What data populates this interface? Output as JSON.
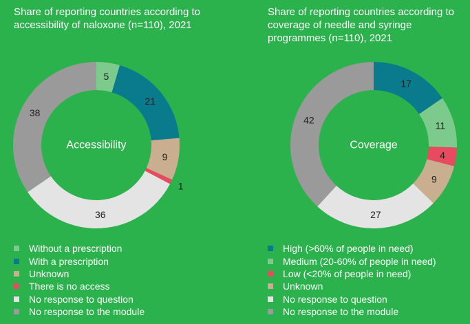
{
  "chart_data": [
    {
      "type": "pie",
      "title": "Share of reporting countries according to accessibility of naloxone  (n=110), 2021",
      "center_label": "Accessibility",
      "categories": [
        "Without a prescription",
        "With a prescription",
        "Unknown",
        "There is no access",
        "No response to question",
        "No response to the module"
      ],
      "values": [
        5,
        21,
        9,
        1,
        36,
        38
      ],
      "colors": [
        "#7ccb8c",
        "#0a7b8c",
        "#c9ae8f",
        "#e84a5f",
        "#e4e4e4",
        "#9a9a9a"
      ],
      "legend_position": "bottom"
    },
    {
      "type": "pie",
      "title": "Share of reporting countries according to coverage of needle and syringe programmes (n=110), 2021",
      "center_label": "Coverage",
      "categories": [
        "High (>60% of people in need)",
        "Medium (20-60% of people in need)",
        "Low (<20% of people in need)",
        "Unknown",
        "No response to question",
        "No response to the module"
      ],
      "values": [
        17,
        11,
        4,
        9,
        27,
        42
      ],
      "colors": [
        "#0a7b8c",
        "#7ccb8c",
        "#e84a5f",
        "#c9ae8f",
        "#e4e4e4",
        "#9a9a9a"
      ],
      "legend_position": "bottom"
    }
  ]
}
